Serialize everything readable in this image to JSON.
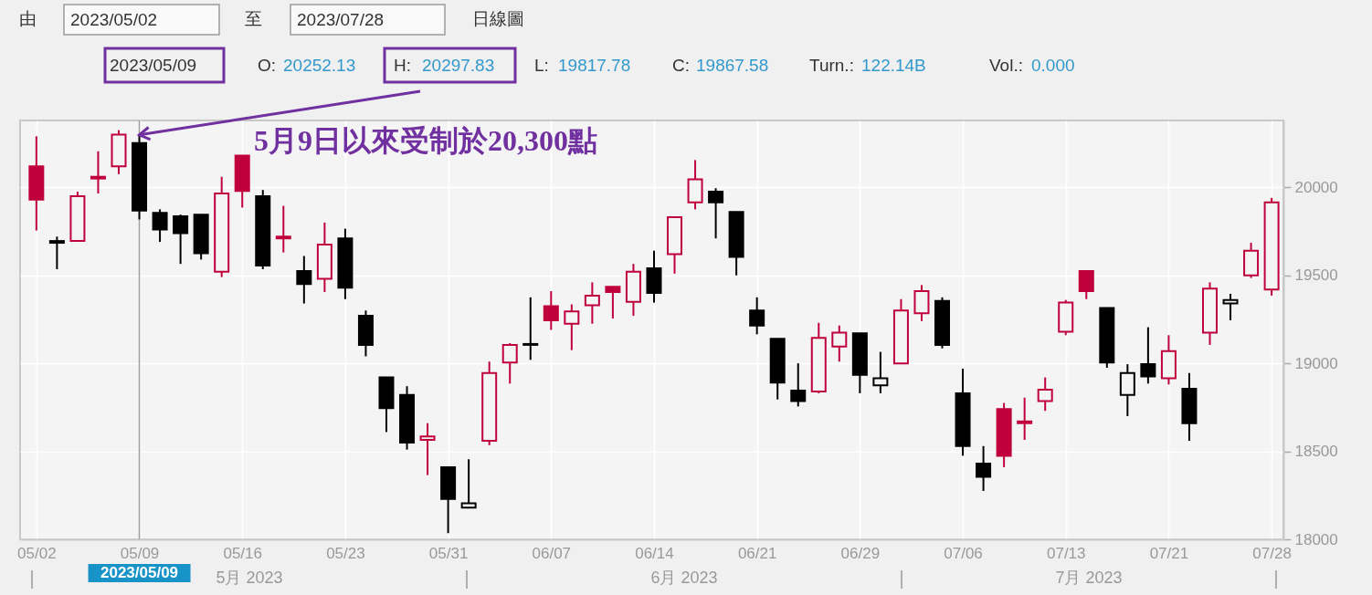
{
  "chart_data": {
    "type": "candlestick",
    "categories": [
      "05/02",
      null,
      null,
      null,
      null,
      "05/09",
      null,
      null,
      null,
      null,
      "05/16",
      null,
      null,
      null,
      null,
      "05/23",
      null,
      null,
      null,
      null,
      "05/31",
      null,
      null,
      null,
      null,
      "06/07",
      null,
      null,
      null,
      null,
      "06/14",
      null,
      null,
      null,
      null,
      "06/21",
      null,
      null,
      null,
      null,
      "06/29",
      null,
      null,
      null,
      null,
      "07/06",
      null,
      null,
      null,
      null,
      "07/13",
      null,
      null,
      null,
      null,
      "07/21",
      null,
      null,
      null,
      null,
      "07/28"
    ],
    "ohlc": [
      [
        20120,
        20290,
        19755,
        19930
      ],
      [
        19695,
        19720,
        19535,
        19685
      ],
      [
        19695,
        19975,
        19690,
        19950
      ],
      [
        20050,
        20205,
        19965,
        20060
      ],
      [
        20120,
        20325,
        20075,
        20300
      ],
      [
        20252.13,
        20297.83,
        19817.78,
        19867.58
      ],
      [
        19855,
        19875,
        19690,
        19760
      ],
      [
        19835,
        19845,
        19565,
        19740
      ],
      [
        19845,
        19845,
        19590,
        19625
      ],
      [
        19520,
        20060,
        19490,
        19965
      ],
      [
        20180,
        20180,
        19885,
        19980
      ],
      [
        19950,
        19985,
        19535,
        19555
      ],
      [
        19710,
        19895,
        19630,
        19720
      ],
      [
        19525,
        19610,
        19340,
        19450
      ],
      [
        19480,
        19800,
        19405,
        19675
      ],
      [
        19710,
        19765,
        19365,
        19430
      ],
      [
        19270,
        19300,
        19040,
        19105
      ],
      [
        18920,
        18920,
        18610,
        18745
      ],
      [
        18820,
        18870,
        18510,
        18550
      ],
      [
        18565,
        18660,
        18365,
        18585
      ],
      [
        18410,
        18410,
        18035,
        18230
      ],
      [
        18180,
        18455,
        18180,
        18205
      ],
      [
        18560,
        19010,
        18535,
        18945
      ],
      [
        19005,
        19115,
        18885,
        19105
      ],
      [
        19110,
        19375,
        19020,
        19105
      ],
      [
        19325,
        19410,
        19190,
        19245
      ],
      [
        19225,
        19335,
        19075,
        19295
      ],
      [
        19330,
        19460,
        19225,
        19385
      ],
      [
        19435,
        19435,
        19255,
        19405
      ],
      [
        19350,
        19565,
        19270,
        19520
      ],
      [
        19540,
        19640,
        19345,
        19400
      ],
      [
        19620,
        19830,
        19510,
        19830
      ],
      [
        19915,
        20155,
        19875,
        20045
      ],
      [
        19975,
        19995,
        19710,
        19915
      ],
      [
        19860,
        19860,
        19500,
        19605
      ],
      [
        19300,
        19375,
        19165,
        19215
      ],
      [
        19140,
        19140,
        18795,
        18890
      ],
      [
        18845,
        19000,
        18755,
        18785
      ],
      [
        18840,
        19230,
        18830,
        19145
      ],
      [
        19095,
        19215,
        19010,
        19175
      ],
      [
        19170,
        19170,
        18830,
        18935
      ],
      [
        18875,
        19065,
        18830,
        18915
      ],
      [
        19000,
        19365,
        19000,
        19300
      ],
      [
        19285,
        19445,
        19240,
        19410
      ],
      [
        19355,
        19375,
        19085,
        19105
      ],
      [
        18830,
        18970,
        18475,
        18530
      ],
      [
        18430,
        18530,
        18275,
        18355
      ],
      [
        18740,
        18775,
        18410,
        18475
      ],
      [
        18660,
        18805,
        18565,
        18670
      ],
      [
        18785,
        18920,
        18730,
        18850
      ],
      [
        19180,
        19360,
        19160,
        19345
      ],
      [
        19525,
        19525,
        19365,
        19410
      ],
      [
        19315,
        19315,
        18975,
        19005
      ],
      [
        18820,
        18995,
        18700,
        18945
      ],
      [
        18995,
        19205,
        18885,
        18925
      ],
      [
        18915,
        19160,
        18880,
        19070
      ],
      [
        18855,
        18945,
        18560,
        18660
      ],
      [
        19175,
        19460,
        19105,
        19425
      ],
      [
        19340,
        19395,
        19245,
        19360
      ],
      [
        19500,
        19685,
        19485,
        19640
      ],
      [
        19420,
        19940,
        19385,
        19915
      ]
    ],
    "colors": [
      "#c0003c",
      "#000000",
      "#c0003c",
      "#c0003c",
      "#c0003c",
      "#000000",
      "#000000",
      "#000000",
      "#000000",
      "#c0003c",
      "#c0003c",
      "#000000",
      "#c0003c",
      "#000000",
      "#c0003c",
      "#000000",
      "#000000",
      "#000000",
      "#000000",
      "#c0003c",
      "#000000",
      "#000000",
      "#c0003c",
      "#c0003c",
      "#000000",
      "#c0003c",
      "#c0003c",
      "#c0003c",
      "#c0003c",
      "#c0003c",
      "#000000",
      "#c0003c",
      "#c0003c",
      "#000000",
      "#000000",
      "#000000",
      "#000000",
      "#000000",
      "#c0003c",
      "#c0003c",
      "#000000",
      "#000000",
      "#c0003c",
      "#c0003c",
      "#000000",
      "#000000",
      "#000000",
      "#c0003c",
      "#c0003c",
      "#c0003c",
      "#c0003c",
      "#c0003c",
      "#000000",
      "#000000",
      "#000000",
      "#c0003c",
      "#000000",
      "#c0003c",
      "#000000",
      "#c0003c",
      "#c0003c"
    ],
    "ylim": [
      18000,
      20380
    ],
    "yticks": [
      18000,
      18500,
      19000,
      19500,
      20000
    ],
    "grid": true,
    "ref_lines": [
      {
        "axis": "x",
        "value": "05/09",
        "label": "2023/05/09",
        "color": "#9e9e9e"
      }
    ],
    "annotations": [
      "由",
      "2023/05/02",
      "至",
      "2023/07/28",
      "日線圖",
      "2023/05/09",
      "O:",
      "20252.13",
      "H:",
      "20297.83",
      "L:",
      "19817.78",
      "C:",
      "19867.58",
      "Turn.:",
      "122.14B",
      "Vol.:",
      "0.000",
      {
        "text": "5月9日以來受制於20,300點",
        "x": "05/09",
        "y": 20297.83
      },
      "5月 2023",
      "6月 2023",
      "7月 2023"
    ]
  }
}
